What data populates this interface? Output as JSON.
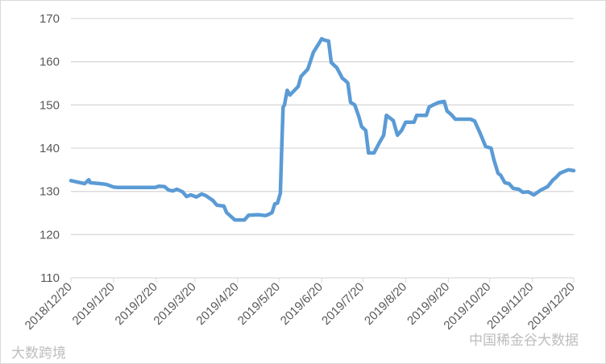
{
  "chart_data": {
    "type": "line",
    "title": "",
    "xlabel": "",
    "ylabel": "",
    "ylim": [
      110,
      170
    ],
    "y_ticks": [
      110,
      120,
      130,
      140,
      150,
      160,
      170
    ],
    "x_ticks": [
      "2018/12/20",
      "2019/1/20",
      "2019/2/20",
      "2019/3/20",
      "2019/4/20",
      "2019/5/20",
      "2019/6/20",
      "2019/7/20",
      "2019/8/20",
      "2019/9/20",
      "2019/10/20",
      "2019/11/20",
      "2019/12/20"
    ],
    "grid": "horizontal",
    "legend": "none",
    "line_color": "#5B9BD5",
    "series": [
      {
        "x": [
          "2018/12/20",
          "2018/12/27",
          "2018/12/30",
          "2019/1/2",
          "2019/1/3",
          "2019/1/10",
          "2019/1/15",
          "2019/1/20",
          "2019/1/23",
          "2019/2/19",
          "2019/2/22",
          "2019/2/26",
          "2019/3/1",
          "2019/3/4",
          "2019/3/7",
          "2019/3/11",
          "2019/3/14",
          "2019/3/17",
          "2019/3/21",
          "2019/3/25",
          "2019/3/28",
          "2019/4/2",
          "2019/4/5",
          "2019/4/10",
          "2019/4/12",
          "2019/4/18",
          "2019/4/25",
          "2019/4/28",
          "2019/5/5",
          "2019/5/10",
          "2019/5/12",
          "2019/5/15",
          "2019/5/17",
          "2019/5/19",
          "2019/5/21",
          "2019/5/22",
          "2019/5/23",
          "2019/5/24",
          "2019/5/26",
          "2019/5/28",
          "2019/6/3",
          "2019/6/5",
          "2019/6/10",
          "2019/6/14",
          "2019/6/18",
          "2019/6/20",
          "2019/6/22",
          "2019/6/25",
          "2019/6/27",
          "2019/7/1",
          "2019/7/5",
          "2019/7/7",
          "2019/7/9",
          "2019/7/11",
          "2019/7/14",
          "2019/7/17",
          "2019/7/19",
          "2019/7/22",
          "2019/7/24",
          "2019/7/28",
          "2019/8/1",
          "2019/8/4",
          "2019/8/6",
          "2019/8/11",
          "2019/8/14",
          "2019/8/17",
          "2019/8/20",
          "2019/8/26",
          "2019/8/28",
          "2019/9/4",
          "2019/9/6",
          "2019/9/9",
          "2019/9/13",
          "2019/9/17",
          "2019/9/19",
          "2019/9/22",
          "2019/9/25",
          "2019/10/6",
          "2019/10/9",
          "2019/10/13",
          "2019/10/17",
          "2019/10/21",
          "2019/10/23",
          "2019/10/26",
          "2019/10/28",
          "2019/10/31",
          "2019/11/3",
          "2019/11/6",
          "2019/11/10",
          "2019/11/13",
          "2019/11/17",
          "2019/11/21",
          "2019/11/26",
          "2019/12/1",
          "2019/12/5",
          "2019/12/7",
          "2019/12/10",
          "2019/12/16",
          "2019/12/20"
        ],
        "y": [
          132.5,
          132.0,
          131.8,
          132.7,
          132.0,
          131.8,
          131.6,
          131.0,
          130.9,
          130.9,
          131.2,
          131.1,
          130.3,
          130.1,
          130.5,
          129.9,
          128.8,
          129.2,
          128.7,
          129.4,
          129.0,
          127.9,
          126.8,
          126.6,
          125.1,
          123.4,
          123.4,
          124.5,
          124.6,
          124.4,
          124.6,
          125.1,
          127.1,
          127.3,
          129.6,
          140.0,
          149.5,
          150.0,
          153.4,
          152.3,
          154.3,
          156.6,
          158.3,
          162.2,
          164.2,
          165.3,
          165.0,
          164.8,
          159.8,
          158.6,
          156.2,
          155.7,
          155.1,
          150.6,
          150.0,
          147.3,
          145.0,
          144.1,
          138.9,
          138.9,
          141.3,
          143.0,
          147.6,
          146.4,
          143.0,
          144.1,
          146.0,
          146.0,
          147.6,
          147.6,
          149.5,
          150.0,
          150.6,
          150.8,
          148.6,
          147.8,
          146.7,
          146.7,
          146.3,
          143.5,
          140.4,
          140.0,
          137.4,
          134.2,
          133.7,
          132.0,
          131.8,
          130.7,
          130.5,
          129.8,
          129.9,
          129.2,
          130.3,
          131.1,
          132.7,
          133.2,
          134.2,
          135.0,
          134.8
        ]
      }
    ]
  },
  "watermarks": {
    "left": "大数跨境",
    "right": "中国稀金谷大数据"
  }
}
